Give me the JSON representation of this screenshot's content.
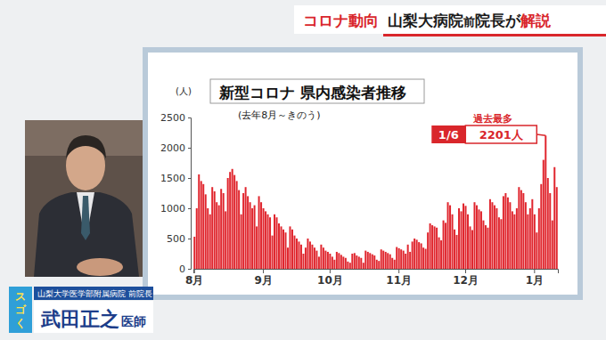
{
  "header": {
    "topic": "コロナ動向",
    "headline": [
      "山梨大病院",
      "前",
      "院長が",
      "解説"
    ]
  },
  "caption": {
    "affiliation": "山梨大学医学部附属病院",
    "role": "前院長",
    "name": "武田正之",
    "title": "医師"
  },
  "logo": "スゴく",
  "chart_data": {
    "type": "bar",
    "title": "新型コロナ 県内感染者推移",
    "subtitle": "(去年8月～きのう)",
    "y_label": "(人)",
    "annotation": {
      "heading": "過去最多",
      "date": "1/6",
      "count": "2201人"
    },
    "color": "#e0262e",
    "grid": false,
    "ylim": [
      0,
      2500
    ],
    "yticks": [
      0,
      500,
      1000,
      1500,
      2000,
      2500
    ],
    "categories": [
      "8月",
      null,
      null,
      null,
      null,
      null,
      null,
      null,
      null,
      null,
      null,
      null,
      null,
      null,
      null,
      null,
      null,
      null,
      null,
      null,
      null,
      null,
      null,
      null,
      null,
      null,
      null,
      null,
      null,
      null,
      null,
      "9月",
      null,
      null,
      null,
      null,
      null,
      null,
      null,
      null,
      null,
      null,
      null,
      null,
      null,
      null,
      null,
      null,
      null,
      null,
      null,
      null,
      null,
      null,
      null,
      null,
      null,
      null,
      null,
      null,
      null,
      "10月",
      null,
      null,
      null,
      null,
      null,
      null,
      null,
      null,
      null,
      null,
      null,
      null,
      null,
      null,
      null,
      null,
      null,
      null,
      null,
      null,
      null,
      null,
      null,
      null,
      null,
      null,
      null,
      null,
      null,
      null,
      "11月",
      null,
      null,
      null,
      null,
      null,
      null,
      null,
      null,
      null,
      null,
      null,
      null,
      null,
      null,
      null,
      null,
      null,
      null,
      null,
      null,
      null,
      null,
      null,
      null,
      null,
      null,
      null,
      null,
      null,
      "12月",
      null,
      null,
      null,
      null,
      null,
      null,
      null,
      null,
      null,
      null,
      null,
      null,
      null,
      null,
      null,
      null,
      null,
      null,
      null,
      null,
      null,
      null,
      null,
      null,
      null,
      null,
      null,
      null,
      null,
      null,
      "1月",
      null,
      null,
      null,
      null,
      null,
      null,
      null,
      null,
      null,
      null
    ],
    "values": [
      530,
      1000,
      1560,
      1450,
      1400,
      1230,
      1000,
      900,
      1350,
      1280,
      1100,
      1050,
      1320,
      1250,
      950,
      1500,
      1600,
      1650,
      1550,
      1450,
      1300,
      900,
      1250,
      1350,
      1200,
      1100,
      1000,
      1050,
      700,
      1200,
      1100,
      1000,
      950,
      900,
      850,
      550,
      900,
      850,
      750,
      700,
      650,
      600,
      350,
      700,
      650,
      550,
      500,
      450,
      400,
      250,
      350,
      500,
      450,
      400,
      350,
      300,
      200,
      400,
      350,
      300,
      280,
      250,
      200,
      150,
      280,
      260,
      230,
      200,
      180,
      120,
      100,
      250,
      260,
      220,
      200,
      180,
      100,
      300,
      280,
      260,
      240,
      220,
      150,
      130,
      320,
      300,
      280,
      260,
      240,
      180,
      150,
      360,
      340,
      320,
      300,
      250,
      400,
      280,
      450,
      500,
      480,
      440,
      420,
      350,
      330,
      600,
      750,
      720,
      700,
      680,
      520,
      470,
      800,
      760,
      1100,
      1050,
      900,
      650,
      560,
      1000,
      950,
      1080,
      1040,
      900,
      700,
      640,
      1100,
      1050,
      980,
      950,
      800,
      720,
      680,
      1150,
      1100,
      1050,
      1000,
      850,
      820,
      1200,
      1250,
      1180,
      1100,
      950,
      900,
      1000,
      1350,
      1300,
      1250,
      1100,
      900,
      1000,
      1150,
      900,
      600,
      1000,
      1400,
      1800,
      2201,
      1500,
      1250,
      800,
      1680,
      1350
    ]
  }
}
